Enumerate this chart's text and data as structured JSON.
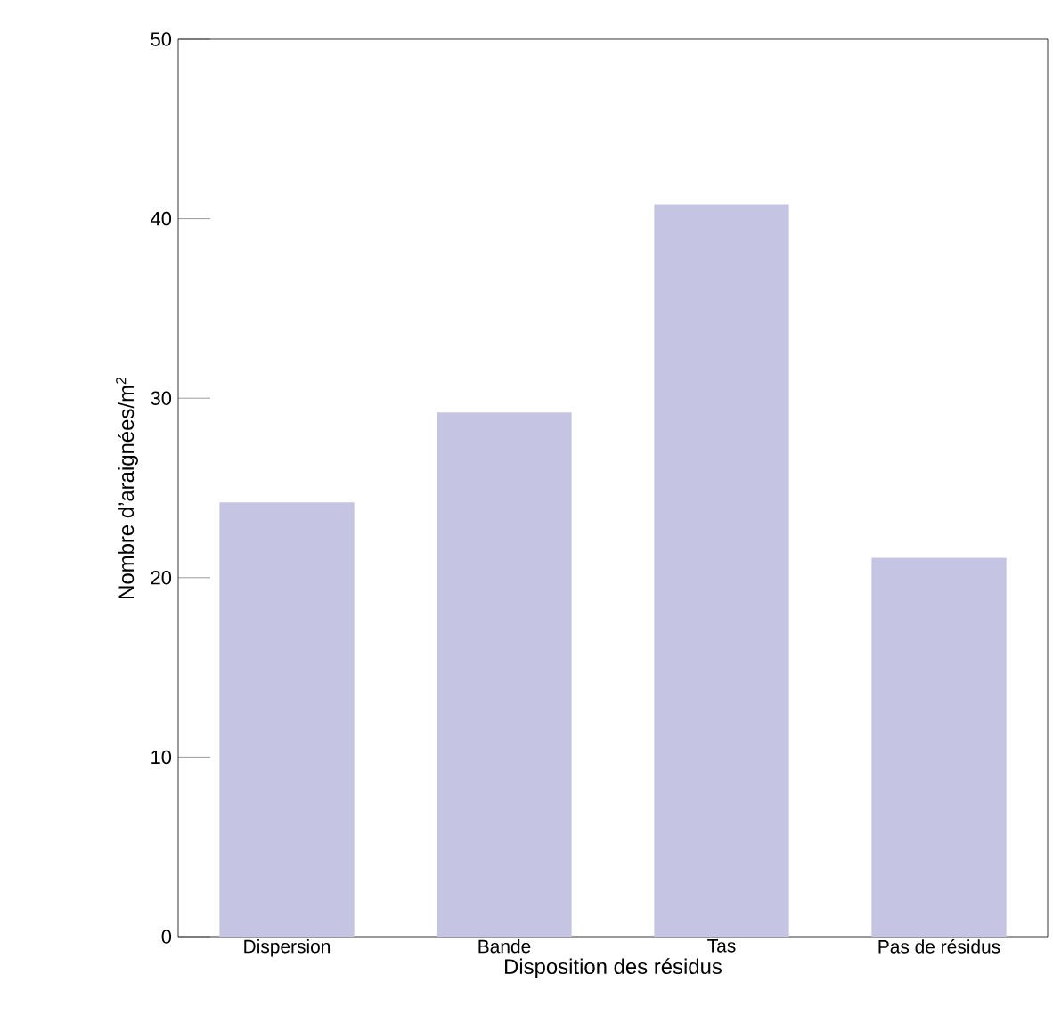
{
  "chart_data": {
    "type": "bar",
    "xlabel": "Disposition des résidus",
    "ylabel": "Nombre d’araignées/m$^{2}$",
    "categories": [
      "Dispersion",
      "Bande",
      "Tas",
      "Pas de résidus"
    ],
    "values": [
      24.2,
      29.2,
      40.8,
      21.1
    ],
    "color": "#c5c5e3",
    "ylim": [
      0,
      50
    ],
    "yticks": [
      0,
      10,
      20,
      30,
      40,
      50
    ],
    "grid": false
  }
}
